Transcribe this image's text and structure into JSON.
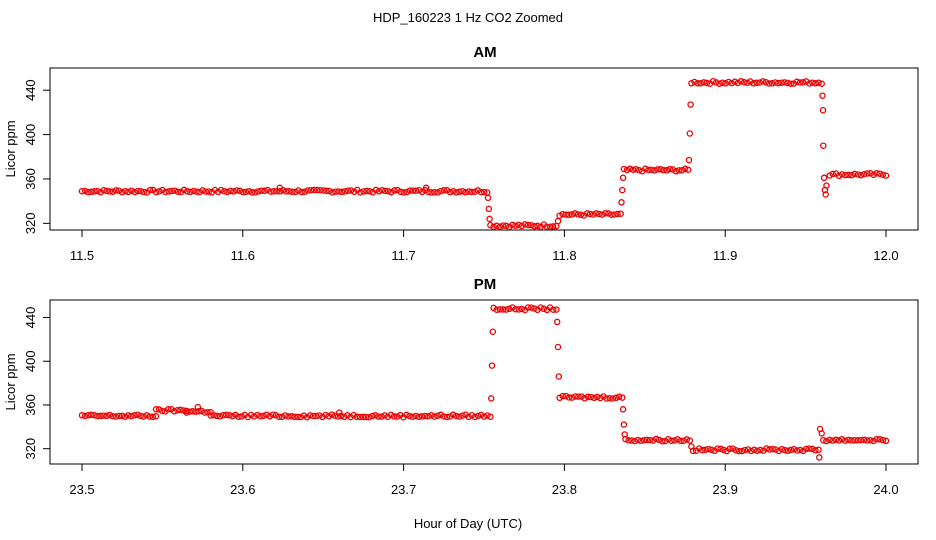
{
  "main_title": "HDP_160223  1 Hz CO2 Zoomed",
  "x_axis_label": "Hour of Day (UTC)",
  "chart_data": [
    {
      "type": "scatter",
      "title": "AM",
      "ylabel": "Licor ppm",
      "xlim": [
        11.5,
        12.0
      ],
      "ylim": [
        314,
        460
      ],
      "x_ticks": [
        11.5,
        11.6,
        11.7,
        11.8,
        11.9,
        12.0
      ],
      "x_tick_labels": [
        "11.5",
        "11.6",
        "11.7",
        "11.8",
        "11.9",
        "12.0"
      ],
      "y_ticks": [
        320,
        360,
        400,
        440
      ],
      "y_tick_labels": [
        "320",
        "360",
        "400",
        "440"
      ],
      "point_color": "#ee0000",
      "series": [
        {
          "plateaus": [
            {
              "x0": 11.5,
              "x1": 11.752,
              "y": 349
            },
            {
              "x0": 11.754,
              "x1": 11.795,
              "y": 318
            },
            {
              "x0": 11.797,
              "x1": 11.835,
              "y": 328
            },
            {
              "x0": 11.837,
              "x1": 11.877,
              "y": 368
            },
            {
              "x0": 11.879,
              "x1": 11.96,
              "y": 447
            },
            {
              "x0": 11.965,
              "x1": 12.0,
              "y": 364
            }
          ],
          "transitions": [
            {
              "x": 11.7525,
              "y": 343
            },
            {
              "x": 11.753,
              "y": 333
            },
            {
              "x": 11.7535,
              "y": 324
            },
            {
              "x": 11.796,
              "y": 322
            },
            {
              "x": 11.8355,
              "y": 339
            },
            {
              "x": 11.836,
              "y": 350
            },
            {
              "x": 11.8365,
              "y": 361
            },
            {
              "x": 11.8775,
              "y": 377
            },
            {
              "x": 11.878,
              "y": 401
            },
            {
              "x": 11.8785,
              "y": 427
            },
            {
              "x": 11.9605,
              "y": 435
            },
            {
              "x": 11.9608,
              "y": 422
            },
            {
              "x": 11.961,
              "y": 390
            },
            {
              "x": 11.9615,
              "y": 361
            },
            {
              "x": 11.962,
              "y": 350
            },
            {
              "x": 11.9625,
              "y": 346
            },
            {
              "x": 11.963,
              "y": 354
            }
          ],
          "bumps": [
            {
              "x": 11.623,
              "y": 352
            },
            {
              "x": 11.714,
              "y": 352
            }
          ]
        }
      ]
    },
    {
      "type": "scatter",
      "title": "PM",
      "ylabel": "Licor ppm",
      "xlim": [
        23.5,
        24.0
      ],
      "ylim": [
        306,
        456
      ],
      "x_ticks": [
        23.5,
        23.6,
        23.7,
        23.8,
        23.9,
        24.0
      ],
      "x_tick_labels": [
        "23.5",
        "23.6",
        "23.7",
        "23.8",
        "23.9",
        "24.0"
      ],
      "y_ticks": [
        320,
        360,
        400,
        440
      ],
      "y_tick_labels": [
        "320",
        "360",
        "400",
        "440"
      ],
      "point_color": "#ee0000",
      "series": [
        {
          "plateaus": [
            {
              "x0": 23.5,
              "x1": 23.546,
              "y": 350
            },
            {
              "x0": 23.546,
              "x1": 23.565,
              "y": 355
            },
            {
              "x0": 23.565,
              "x1": 23.58,
              "y": 354
            },
            {
              "x0": 23.58,
              "x1": 23.754,
              "y": 350
            },
            {
              "x0": 23.756,
              "x1": 23.795,
              "y": 448
            },
            {
              "x0": 23.797,
              "x1": 23.836,
              "y": 367
            },
            {
              "x0": 23.838,
              "x1": 23.878,
              "y": 328
            },
            {
              "x0": 23.88,
              "x1": 23.958,
              "y": 319
            },
            {
              "x0": 23.961,
              "x1": 24.0,
              "y": 328
            }
          ],
          "transitions": [
            {
              "x": 23.7545,
              "y": 366
            },
            {
              "x": 23.755,
              "y": 396
            },
            {
              "x": 23.7555,
              "y": 427
            },
            {
              "x": 23.7955,
              "y": 436
            },
            {
              "x": 23.796,
              "y": 413
            },
            {
              "x": 23.7965,
              "y": 386
            },
            {
              "x": 23.8365,
              "y": 356
            },
            {
              "x": 23.837,
              "y": 342
            },
            {
              "x": 23.8375,
              "y": 333
            },
            {
              "x": 23.879,
              "y": 322
            },
            {
              "x": 23.9585,
              "y": 312
            },
            {
              "x": 23.959,
              "y": 338
            },
            {
              "x": 23.96,
              "y": 334
            }
          ],
          "bumps": [
            {
              "x": 23.572,
              "y": 358
            },
            {
              "x": 23.66,
              "y": 353
            }
          ]
        }
      ]
    }
  ]
}
